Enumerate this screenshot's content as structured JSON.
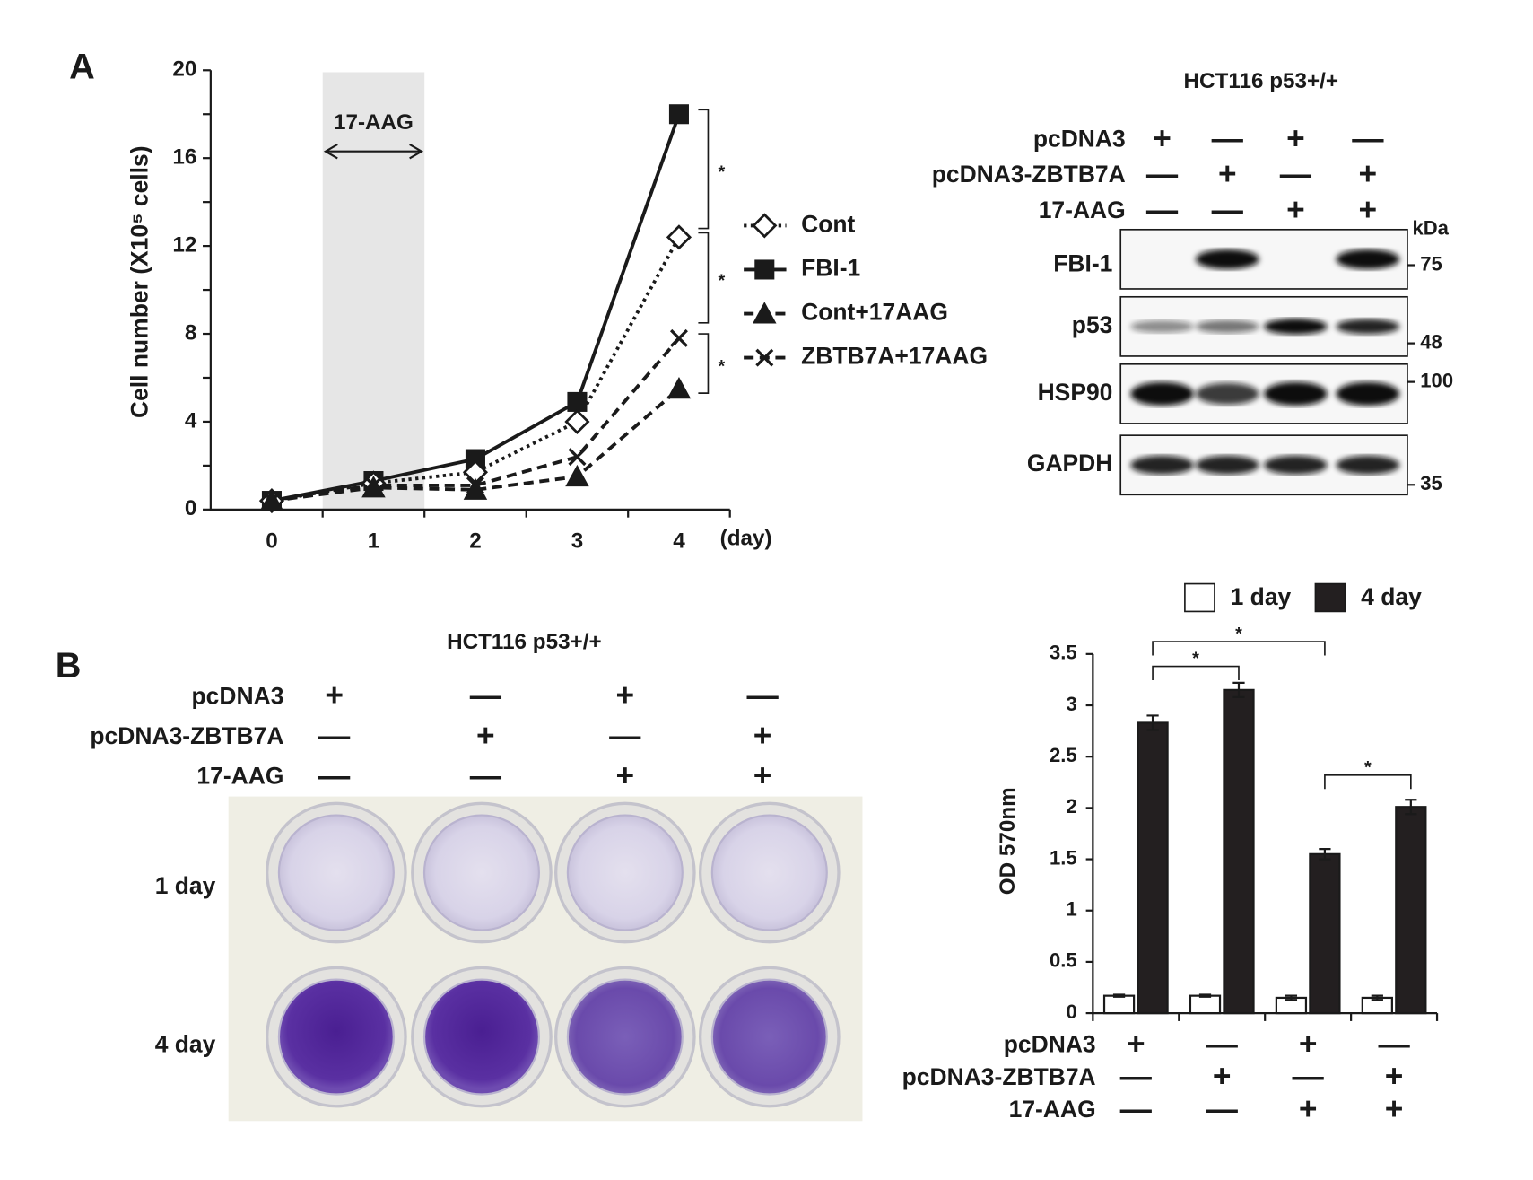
{
  "panels": {
    "a": "A",
    "b": "B"
  },
  "chart_data": [
    {
      "type": "line",
      "ylabel": "Cell number (X10⁵ cells)",
      "xlabel": "(day)",
      "x": [
        0,
        1,
        2,
        3,
        4
      ],
      "xlim": [
        -0.6,
        4.5
      ],
      "xticks": [
        0,
        1,
        2,
        3,
        4
      ],
      "xminorticks": [
        0.5,
        1.5,
        2.5,
        3.5,
        4.5
      ],
      "ylim": [
        0,
        20
      ],
      "yticks": [
        0,
        4,
        8,
        12,
        16,
        20
      ],
      "yminorticks": [
        2,
        6,
        10,
        14,
        18
      ],
      "shade": {
        "range": [
          0.5,
          1.5
        ],
        "label": "17-AAG",
        "color": "#e6e6e6"
      },
      "legend": "right",
      "series": [
        {
          "name": "Cont",
          "color": "#1a1a1a",
          "marker": "diamond-open",
          "dash": "dotted",
          "values": [
            0.4,
            1.2,
            1.7,
            4.0,
            12.4
          ]
        },
        {
          "name": "FBI-1",
          "color": "#1a1a1a",
          "marker": "square",
          "dash": "solid",
          "values": [
            0.4,
            1.3,
            2.3,
            4.9,
            18.0
          ]
        },
        {
          "name": "Cont+17AAG",
          "color": "#1a1a1a",
          "marker": "triangle",
          "dash": "dashed",
          "values": [
            0.4,
            1.0,
            0.9,
            1.5,
            5.5
          ]
        },
        {
          "name": "ZBTB7A+17AAG",
          "color": "#1a1a1a",
          "marker": "cross",
          "dash": "dashed",
          "values": [
            0.4,
            1.1,
            1.1,
            2.4,
            7.8
          ]
        }
      ],
      "significance": [
        {
          "y": [
            18.2,
            12.8
          ],
          "label": "*"
        },
        {
          "y": [
            12.6,
            8.5
          ],
          "label": "*"
        },
        {
          "y": [
            8.0,
            5.3
          ],
          "label": "*"
        }
      ]
    },
    {
      "type": "bar",
      "ylabel": "OD 570nm",
      "categories": [
        null,
        null,
        null,
        null
      ],
      "ylim": [
        0,
        3.5
      ],
      "yticks": [
        0,
        0.5,
        1,
        1.5,
        2,
        2.5,
        3,
        3.5
      ],
      "legend": "top",
      "series": [
        {
          "name": "1 day",
          "color": "#ffffff",
          "values": [
            0.17,
            0.17,
            0.15,
            0.15
          ],
          "errors": [
            0.01,
            0.01,
            0.02,
            0.02
          ]
        },
        {
          "name": "4 day",
          "color": "#231f20",
          "values": [
            2.83,
            3.15,
            1.55,
            2.01
          ],
          "errors": [
            0.07,
            0.07,
            0.05,
            0.07
          ]
        }
      ],
      "significance": [
        {
          "from": 0,
          "to": 1,
          "y": 3.38,
          "label": "*"
        },
        {
          "from": 0,
          "to": 2,
          "y": 3.62,
          "label": "*"
        },
        {
          "from": 2,
          "to": 3,
          "y": 2.32,
          "label": "*"
        }
      ],
      "conditions": [
        {
          "label": "pcDNA3",
          "signs": [
            "+",
            "—",
            "+",
            "—"
          ]
        },
        {
          "label": "pcDNA3-ZBTB7A",
          "signs": [
            "—",
            "+",
            "—",
            "+"
          ]
        },
        {
          "label": "17-AAG",
          "signs": [
            "—",
            "—",
            "+",
            "+"
          ]
        }
      ]
    }
  ],
  "western_blot": {
    "title": "HCT116 p53+/+",
    "conditions": [
      {
        "label": "pcDNA3",
        "signs": [
          "+",
          "—",
          "+",
          "—"
        ]
      },
      {
        "label": "pcDNA3-ZBTB7A",
        "signs": [
          "—",
          "+",
          "—",
          "+"
        ]
      },
      {
        "label": "17-AAG",
        "signs": [
          "—",
          "—",
          "+",
          "+"
        ]
      }
    ],
    "rows": [
      "FBI-1",
      "p53",
      "HSP90",
      "GAPDH"
    ],
    "marker_unit": "kDa",
    "markers": [
      "75",
      "48",
      "100",
      "35"
    ]
  },
  "plate": {
    "title": "HCT116 p53+/+",
    "conditions": [
      {
        "label": "pcDNA3",
        "signs": [
          "+",
          "—",
          "+",
          "—"
        ]
      },
      {
        "label": "pcDNA3-ZBTB7A",
        "signs": [
          "—",
          "+",
          "—",
          "+"
        ]
      },
      {
        "label": "17-AAG",
        "signs": [
          "—",
          "—",
          "+",
          "+"
        ]
      }
    ],
    "rows": [
      "1 day",
      "4 day"
    ]
  }
}
